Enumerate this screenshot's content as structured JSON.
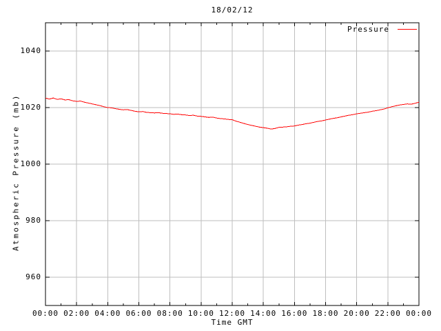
{
  "window": {
    "background": "#ffffff",
    "foreground": "#000000"
  },
  "chart_data": {
    "type": "line",
    "title": "18/02/12",
    "xlabel": "Time GMT",
    "ylabel": "Atmospheric Pressure (mb)",
    "grid": true,
    "grid_color": "#bebebe",
    "border_color": "#000000",
    "background_color": "#ffffff",
    "legend_position": "top-right-inside",
    "xlim": [
      0,
      24
    ],
    "ylim": [
      950,
      1050
    ],
    "x_ticks": [
      {
        "hour": 0,
        "label": "00:00"
      },
      {
        "hour": 2,
        "label": "02:00"
      },
      {
        "hour": 4,
        "label": "04:00"
      },
      {
        "hour": 6,
        "label": "06:00"
      },
      {
        "hour": 8,
        "label": "08:00"
      },
      {
        "hour": 10,
        "label": "10:00"
      },
      {
        "hour": 12,
        "label": "12:00"
      },
      {
        "hour": 14,
        "label": "14:00"
      },
      {
        "hour": 16,
        "label": "16:00"
      },
      {
        "hour": 18,
        "label": "18:00"
      },
      {
        "hour": 20,
        "label": "20:00"
      },
      {
        "hour": 22,
        "label": "22:00"
      },
      {
        "hour": 24,
        "label": "00:00"
      }
    ],
    "x_minor_tick_hours": [
      1,
      3,
      5,
      7,
      9,
      11,
      13,
      15,
      17,
      19,
      21,
      23
    ],
    "y_ticks": [
      {
        "value": 960,
        "label": "960"
      },
      {
        "value": 980,
        "label": "980"
      },
      {
        "value": 1000,
        "label": "1000"
      },
      {
        "value": 1020,
        "label": "1020"
      },
      {
        "value": 1040,
        "label": "1040"
      }
    ],
    "series": [
      {
        "name": "Pressure",
        "color": "#ff0000",
        "points": [
          [
            0.0,
            1023.4
          ],
          [
            0.25,
            1023.0
          ],
          [
            0.5,
            1023.4
          ],
          [
            0.75,
            1022.9
          ],
          [
            1.0,
            1023.1
          ],
          [
            1.25,
            1022.7
          ],
          [
            1.5,
            1022.8
          ],
          [
            1.75,
            1022.4
          ],
          [
            2.0,
            1022.2
          ],
          [
            2.25,
            1022.3
          ],
          [
            2.5,
            1021.9
          ],
          [
            2.75,
            1021.6
          ],
          [
            3.0,
            1021.3
          ],
          [
            3.25,
            1021.0
          ],
          [
            3.5,
            1020.7
          ],
          [
            3.75,
            1020.3
          ],
          [
            4.0,
            1020.0
          ],
          [
            4.25,
            1019.9
          ],
          [
            4.5,
            1019.6
          ],
          [
            4.75,
            1019.4
          ],
          [
            5.0,
            1019.2
          ],
          [
            5.25,
            1019.3
          ],
          [
            5.5,
            1019.0
          ],
          [
            5.75,
            1018.7
          ],
          [
            6.0,
            1018.5
          ],
          [
            6.25,
            1018.6
          ],
          [
            6.5,
            1018.3
          ],
          [
            6.75,
            1018.2
          ],
          [
            7.0,
            1018.1
          ],
          [
            7.25,
            1018.2
          ],
          [
            7.5,
            1018.0
          ],
          [
            7.75,
            1017.9
          ],
          [
            8.0,
            1017.8
          ],
          [
            8.25,
            1017.6
          ],
          [
            8.5,
            1017.7
          ],
          [
            8.75,
            1017.5
          ],
          [
            9.0,
            1017.4
          ],
          [
            9.25,
            1017.2
          ],
          [
            9.5,
            1017.3
          ],
          [
            9.75,
            1017.0
          ],
          [
            10.0,
            1016.9
          ],
          [
            10.25,
            1016.7
          ],
          [
            10.5,
            1016.5
          ],
          [
            10.75,
            1016.6
          ],
          [
            11.0,
            1016.3
          ],
          [
            11.25,
            1016.1
          ],
          [
            11.5,
            1016.0
          ],
          [
            11.75,
            1015.8
          ],
          [
            12.0,
            1015.7
          ],
          [
            12.25,
            1015.2
          ],
          [
            12.5,
            1014.8
          ],
          [
            12.75,
            1014.4
          ],
          [
            13.0,
            1014.0
          ],
          [
            13.25,
            1013.7
          ],
          [
            13.5,
            1013.4
          ],
          [
            13.75,
            1013.1
          ],
          [
            14.0,
            1012.9
          ],
          [
            14.25,
            1012.7
          ],
          [
            14.5,
            1012.4
          ],
          [
            14.75,
            1012.6
          ],
          [
            15.0,
            1013.0
          ],
          [
            15.25,
            1013.1
          ],
          [
            15.5,
            1013.2
          ],
          [
            15.75,
            1013.4
          ],
          [
            16.0,
            1013.5
          ],
          [
            16.25,
            1013.8
          ],
          [
            16.5,
            1014.0
          ],
          [
            16.75,
            1014.3
          ],
          [
            17.0,
            1014.5
          ],
          [
            17.25,
            1014.8
          ],
          [
            17.5,
            1015.1
          ],
          [
            17.75,
            1015.3
          ],
          [
            18.0,
            1015.6
          ],
          [
            18.25,
            1015.9
          ],
          [
            18.5,
            1016.2
          ],
          [
            18.75,
            1016.4
          ],
          [
            19.0,
            1016.7
          ],
          [
            19.25,
            1017.0
          ],
          [
            19.5,
            1017.3
          ],
          [
            19.75,
            1017.5
          ],
          [
            20.0,
            1017.8
          ],
          [
            20.25,
            1018.0
          ],
          [
            20.5,
            1018.2
          ],
          [
            20.75,
            1018.4
          ],
          [
            21.0,
            1018.7
          ],
          [
            21.25,
            1018.9
          ],
          [
            21.5,
            1019.2
          ],
          [
            21.75,
            1019.5
          ],
          [
            22.0,
            1019.9
          ],
          [
            22.25,
            1020.3
          ],
          [
            22.5,
            1020.6
          ],
          [
            22.75,
            1020.9
          ],
          [
            23.0,
            1021.1
          ],
          [
            23.25,
            1021.3
          ],
          [
            23.5,
            1021.2
          ],
          [
            23.75,
            1021.5
          ],
          [
            24.0,
            1021.9
          ]
        ]
      }
    ]
  }
}
